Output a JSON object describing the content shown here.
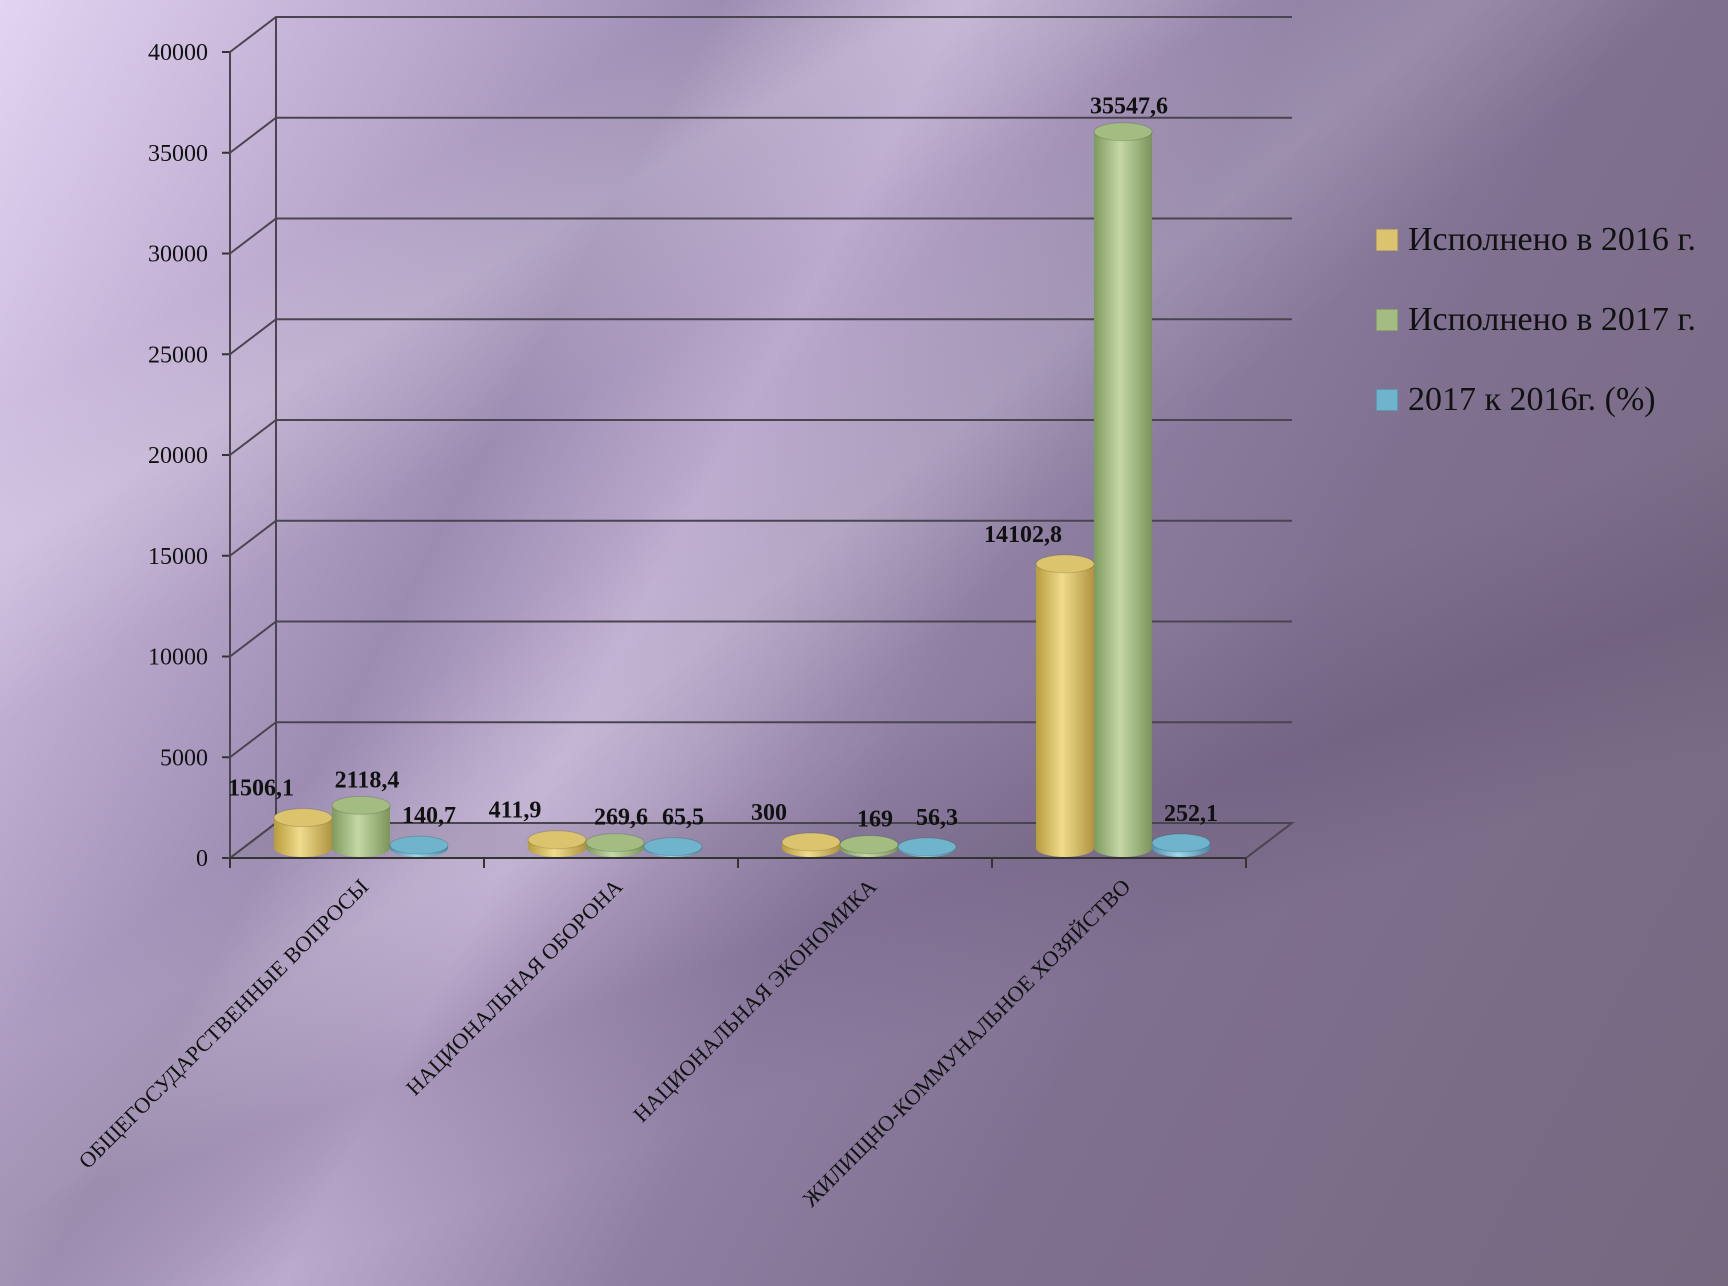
{
  "chart_data": {
    "type": "bar",
    "title": "",
    "xlabel": "",
    "ylabel": "",
    "ylim": [
      0,
      40000
    ],
    "yticks": [
      "0",
      "5000",
      "10000",
      "15000",
      "20000",
      "25000",
      "30000",
      "35000",
      "40000"
    ],
    "grid": true,
    "legend_position": "right",
    "categories": [
      "ОБЩЕГОСУДАРСТВЕННЫЕ ВОПРОСЫ",
      "НАЦИОНАЛЬНАЯ ОБОРОНА",
      "НАЦИОНАЛЬНАЯ ЭКОНОМИКА",
      "ЖИЛИЩНО-КОММУНАЛЬНОЕ ХОЗЯЙСТВО"
    ],
    "series": [
      {
        "name": "Исполнено в 2016 г.",
        "color": "#dcc46e",
        "values": [
          1506.1,
          411.9,
          300,
          14102.8
        ],
        "labels": [
          "1506,1",
          "411,9",
          "300",
          "14102,8"
        ]
      },
      {
        "name": "Исполнено в 2017 г.",
        "color": "#a3bc82",
        "values": [
          2118.4,
          269.6,
          169,
          35547.6
        ],
        "labels": [
          "2118,4",
          "269,6",
          "169",
          "35547,6"
        ]
      },
      {
        "name": "2017 к 2016г. (%)",
        "color": "#6fb3cd",
        "values": [
          140.7,
          65.5,
          56.3,
          252.1
        ],
        "labels": [
          "140,7",
          "65,5",
          "56,3",
          "252,1"
        ]
      }
    ]
  }
}
